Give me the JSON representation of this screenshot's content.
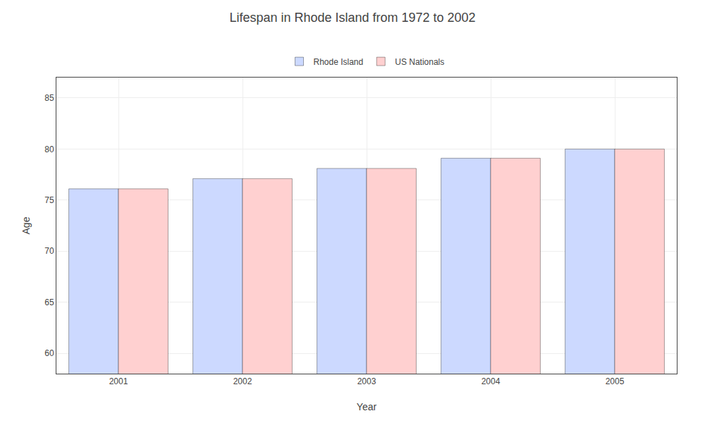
{
  "chart_data": {
    "type": "bar",
    "title": "Lifespan in Rhode Island from 1972 to 2002",
    "xlabel": "Year",
    "ylabel": "Age",
    "categories": [
      "2001",
      "2002",
      "2003",
      "2004",
      "2005"
    ],
    "series": [
      {
        "name": "Rhode Island",
        "color": "#ccd9ff",
        "values": [
          76.1,
          77.1,
          78.1,
          79.1,
          80.0
        ]
      },
      {
        "name": "US Nationals",
        "color": "#ffd0d0",
        "values": [
          76.1,
          77.1,
          78.1,
          79.1,
          80.0
        ]
      }
    ],
    "ylim": [
      58,
      87
    ],
    "yticks": [
      60,
      65,
      70,
      75,
      80,
      85
    ],
    "grid": true,
    "legend": "top"
  }
}
